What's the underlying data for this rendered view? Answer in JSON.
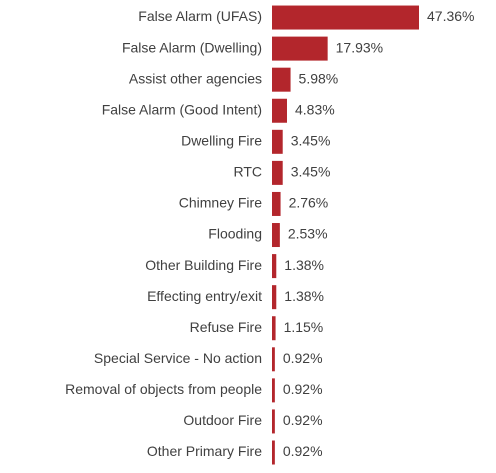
{
  "chart_data": {
    "type": "bar",
    "orientation": "horizontal",
    "categories": [
      "False Alarm (UFAS)",
      "False Alarm (Dwelling)",
      "Assist other agencies",
      "False Alarm (Good Intent)",
      "Dwelling Fire",
      "RTC",
      "Chimney Fire",
      "Flooding",
      "Other Building Fire",
      "Effecting entry/exit",
      "Refuse Fire",
      "Special Service - No action",
      "Removal of objects from people",
      "Outdoor Fire",
      "Other Primary Fire"
    ],
    "values": [
      47.36,
      17.93,
      5.98,
      4.83,
      3.45,
      3.45,
      2.76,
      2.53,
      1.38,
      1.38,
      1.15,
      0.92,
      0.92,
      0.92,
      0.92
    ],
    "value_labels": [
      "47.36%",
      "17.93%",
      "5.98%",
      "4.83%",
      "3.45%",
      "3.45%",
      "2.76%",
      "2.53%",
      "1.38%",
      "1.38%",
      "1.15%",
      "0.92%",
      "0.92%",
      "0.92%",
      "0.92%"
    ],
    "color": "#b3262c"
  }
}
